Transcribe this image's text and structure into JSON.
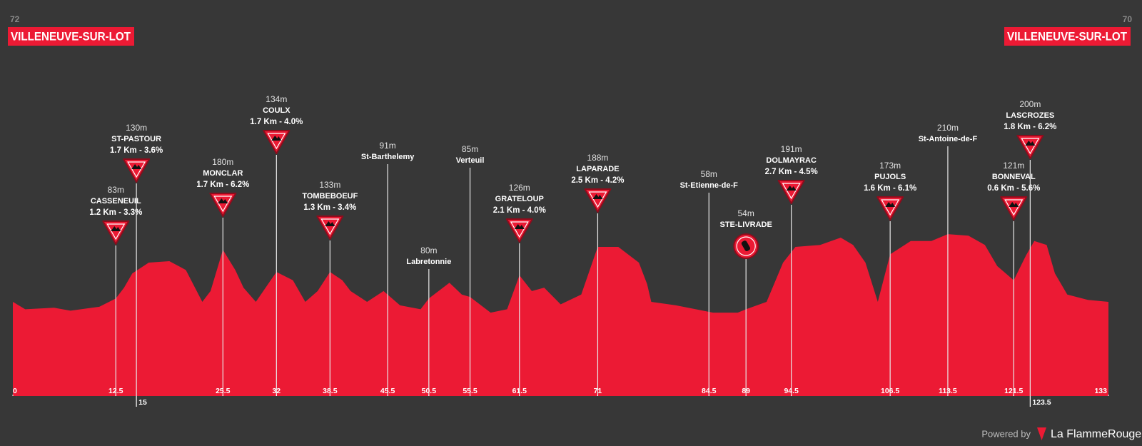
{
  "header": {
    "start": {
      "elevation": "72",
      "name": "VILLENEUVE-SUR-LOT"
    },
    "finish": {
      "elevation": "70",
      "name": "VILLENEUVE-SUR-LOT"
    }
  },
  "chart_data": {
    "type": "area",
    "color": "#ec1a34",
    "x": [
      0,
      1.5,
      5,
      7,
      10.5,
      12.5,
      13.5,
      14.5,
      16.5,
      19,
      21,
      23,
      24,
      25.5,
      27,
      28,
      29.5,
      32,
      34,
      35.5,
      37,
      38.5,
      40,
      41,
      43,
      45,
      47,
      49.5,
      50.5,
      53,
      54.5,
      55.5,
      58,
      60,
      61.5,
      63,
      64.5,
      66.5,
      69,
      71,
      73.5,
      76,
      77,
      77.5,
      80.5,
      85,
      88,
      89,
      91.5,
      93.5,
      95,
      98,
      100.5,
      102,
      103.5,
      105,
      106.5,
      109,
      111.5,
      113.5,
      116,
      118,
      119.5,
      121.5,
      123,
      124,
      125.5,
      126.5,
      128,
      130.5,
      133
    ],
    "values": [
      72,
      57,
      60,
      54,
      62,
      79,
      101,
      130,
      152,
      155,
      137,
      72,
      94,
      178,
      137,
      101,
      72,
      133,
      116,
      72,
      94,
      133,
      116,
      94,
      72,
      94,
      65,
      57,
      79,
      111,
      87,
      82,
      50,
      57,
      126,
      94,
      101,
      67,
      87,
      184,
      184,
      152,
      108,
      72,
      65,
      50,
      50,
      57,
      72,
      152,
      184,
      188,
      203,
      188,
      152,
      72,
      169,
      196,
      196,
      210,
      207,
      188,
      145,
      116,
      167,
      196,
      188,
      130,
      87,
      76,
      72
    ],
    "xlim": [
      0,
      133
    ],
    "ylim": [
      -120,
      240
    ],
    "xticks": [
      0,
      12.5,
      25.5,
      32,
      38.5,
      45.5,
      50.5,
      55.5,
      61.5,
      71,
      84.5,
      89,
      94.5,
      106.5,
      113.5,
      121.5,
      133
    ],
    "lower_xticks": [
      15,
      123.5
    ],
    "waypoints": [
      {
        "km": 12.5,
        "elevation": "83m",
        "name": "CASSENEUIL",
        "climb": "1.2 Km - 3.3%"
      },
      {
        "km": 15,
        "elevation": "130m",
        "name": "ST-PASTOUR",
        "climb": "1.7 Km - 3.6%"
      },
      {
        "km": 25.5,
        "elevation": "180m",
        "name": "MONCLAR",
        "climb": "1.7 Km - 6.2%"
      },
      {
        "km": 32,
        "elevation": "134m",
        "name": "COULX",
        "climb": "1.7 Km - 4.0%"
      },
      {
        "km": 38.5,
        "elevation": "133m",
        "name": "TOMBEBOEUF",
        "climb": "1.3 Km - 3.4%"
      },
      {
        "km": 45.5,
        "elevation": "91m",
        "name": "St-Barthelemy"
      },
      {
        "km": 50.5,
        "elevation": "80m",
        "name": "Labretonnie"
      },
      {
        "km": 55.5,
        "elevation": "85m",
        "name": "Verteuil"
      },
      {
        "km": 61.5,
        "elevation": "126m",
        "name": "GRATELOUP",
        "climb": "2.1 Km - 4.0%"
      },
      {
        "km": 71,
        "elevation": "188m",
        "name": "LAPARADE",
        "climb": "2.5 Km - 4.2%"
      },
      {
        "km": 84.5,
        "elevation": "58m",
        "name": "St-Etienne-de-F"
      },
      {
        "km": 89,
        "elevation": "54m",
        "name": "STE-LIVRADE",
        "sprint": true
      },
      {
        "km": 94.5,
        "elevation": "191m",
        "name": "DOLMAYRAC",
        "climb": "2.7 Km - 4.5%"
      },
      {
        "km": 106.5,
        "elevation": "173m",
        "name": "PUJOLS",
        "climb": "1.6 Km - 6.1%"
      },
      {
        "km": 113.5,
        "elevation": "210m",
        "name": "St-Antoine-de-F"
      },
      {
        "km": 121.5,
        "elevation": "121m",
        "name": "BONNEVAL",
        "climb": "0.6 Km - 5.6%"
      },
      {
        "km": 123.5,
        "elevation": "200m",
        "name": "LASCROZES",
        "climb": "1.8 Km - 6.2%"
      }
    ]
  },
  "footer": {
    "powered_by": "Powered by",
    "brand": "La FlammeRouge"
  }
}
